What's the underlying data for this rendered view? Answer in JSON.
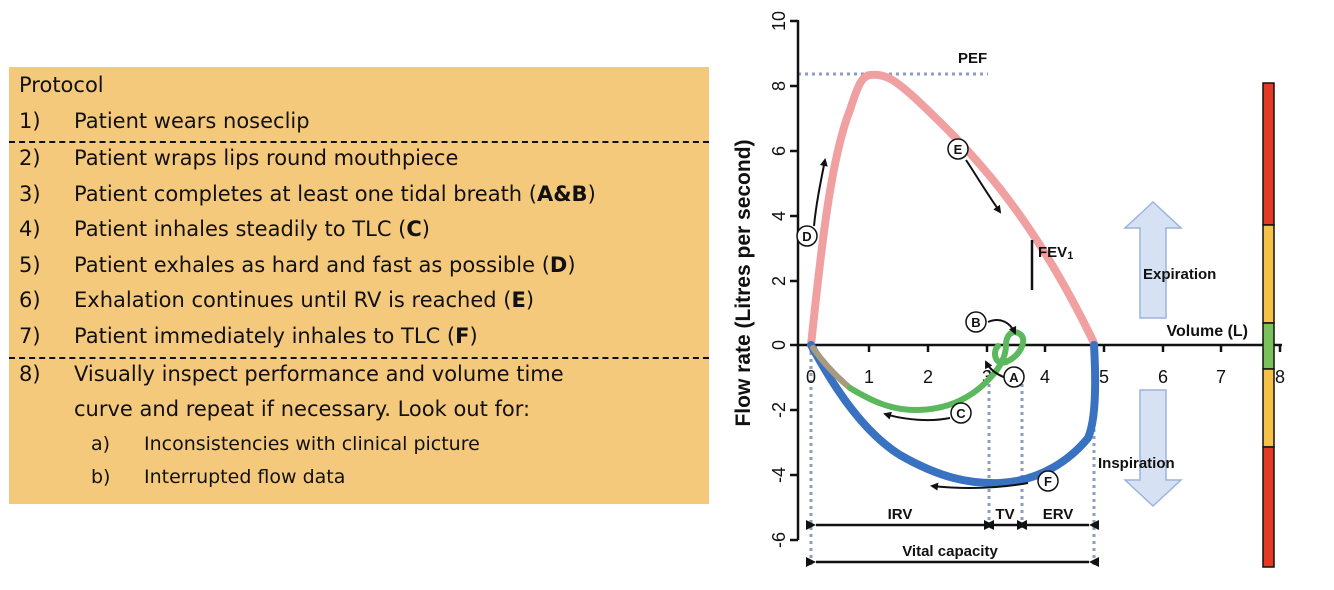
{
  "protocol": {
    "title": "Protocol",
    "steps": [
      {
        "num": "1)",
        "text": "Patient wears noseclip",
        "bold": ""
      },
      {
        "num": "2)",
        "text": "Patient wraps lips round mouthpiece",
        "bold": ""
      },
      {
        "num": "3)",
        "text": "Patient completes at least one tidal breath (",
        "bold": "A&B",
        "after": ")"
      },
      {
        "num": "4)",
        "text": "Patient inhales steadily to TLC (",
        "bold": "C",
        "after": ")"
      },
      {
        "num": "5)",
        "text": "Patient exhales as hard and fast as possible (",
        "bold": "D",
        "after": ")"
      },
      {
        "num": "6)",
        "text": "Exhalation continues until RV is reached (",
        "bold": "E",
        "after": ")"
      },
      {
        "num": "7)",
        "text": "Patient immediately inhales to TLC (",
        "bold": "F",
        "after": ")"
      },
      {
        "num": "8)",
        "text": "Visually inspect performance and volume time",
        "bold": ""
      },
      {
        "num": "",
        "text": "curve and repeat if necessary. Look out for:",
        "bold": ""
      }
    ],
    "substeps": [
      {
        "num": "a)",
        "text": "Inconsistencies with clinical picture"
      },
      {
        "num": "b)",
        "text": "Interrupted flow data"
      }
    ]
  },
  "chart_data": {
    "type": "line",
    "ylabel": "Flow rate (Litres per second)",
    "xlabel": "Volume (L)",
    "x_ticks": [
      "0",
      "1",
      "2",
      "3",
      "4",
      "5",
      "6",
      "7",
      "8"
    ],
    "y_ticks": [
      "10",
      "8",
      "6",
      "4",
      "2",
      "0",
      "-2",
      "-4",
      "-6"
    ],
    "xlim": [
      0,
      8
    ],
    "ylim": [
      -6,
      10
    ],
    "annotations": {
      "pef": "PEF",
      "fev1": "FEV",
      "fev1_sub": "1",
      "expiration": "Expiration",
      "inspiration": "Inspiration",
      "irv": "IRV",
      "tv": "TV",
      "erv": "ERV",
      "vital_capacity": "Vital capacity"
    },
    "markers": [
      "A",
      "B",
      "C",
      "D",
      "E",
      "F"
    ],
    "colors": {
      "expiration_curve": "#f0a0a0",
      "inspiration_curve": "#3a72c2",
      "tidal_loop": "#5cb85c",
      "gray_segment": "#a89a7e",
      "dotted": "#8b9dc0",
      "arrow_fill": "#d6e2f3",
      "arrow_stroke": "#9bb4dc",
      "bar_red": "#e23a24",
      "bar_amber": "#f5c147",
      "bar_green": "#79c25b"
    }
  }
}
